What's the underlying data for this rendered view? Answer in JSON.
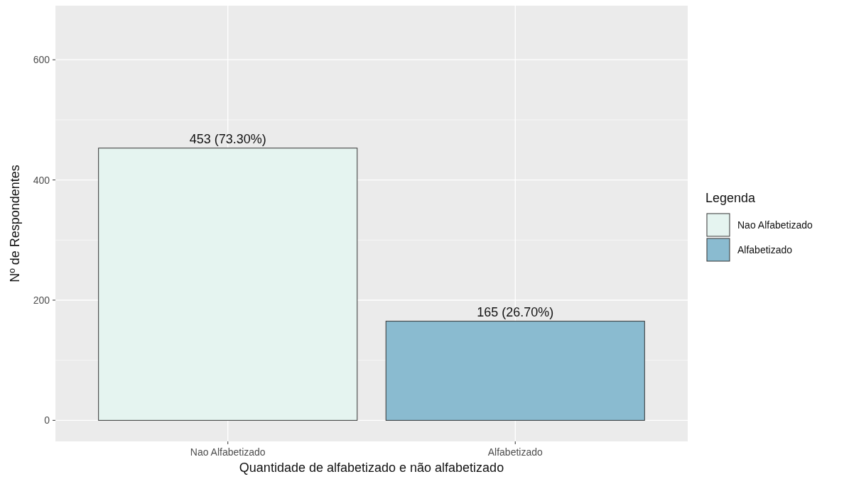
{
  "chart_data": {
    "type": "bar",
    "xlabel": "Quantidade de alfabetizado e não alfabetizado",
    "ylabel": "Nº de Respondentes",
    "legend_title": "Legenda",
    "categories": [
      "Nao Alfabetizado",
      "Alfabetizado"
    ],
    "series": [
      {
        "name": "Nao Alfabetizado",
        "color": "#e5f4f0",
        "values": [
          453,
          null
        ],
        "value_labels": [
          "453 (73.30%)",
          null
        ]
      },
      {
        "name": "Alfabetizado",
        "color": "#8abbd0",
        "values": [
          null,
          165
        ],
        "value_labels": [
          null,
          "165 (26.70%)"
        ]
      }
    ],
    "ylim": [
      -35,
      690
    ],
    "yticks": [
      0,
      200,
      400,
      600
    ],
    "grid": true,
    "legend": "right"
  }
}
